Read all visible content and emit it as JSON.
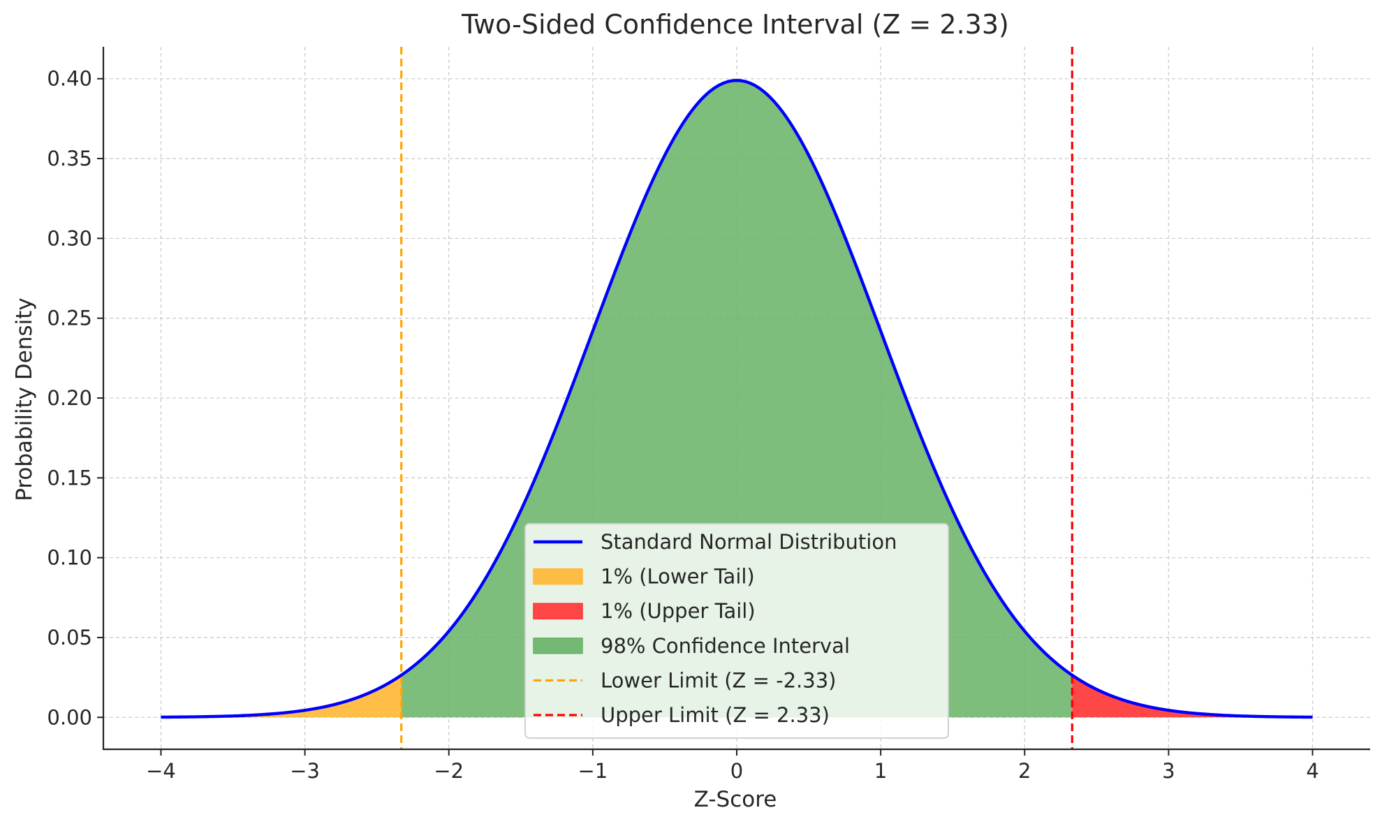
{
  "chart_data": {
    "type": "area",
    "title": "Two-Sided Confidence Interval (Z = 2.33)",
    "xlabel": "Z-Score",
    "ylabel": "Probability Density",
    "xlim": [
      -4.4,
      4.4
    ],
    "ylim": [
      -0.02,
      0.42
    ],
    "xticks": [
      -4,
      -3,
      -2,
      -1,
      0,
      1,
      2,
      3,
      4
    ],
    "xtick_labels": [
      "−4",
      "−3",
      "−2",
      "−1",
      "0",
      "1",
      "2",
      "3",
      "4"
    ],
    "yticks": [
      0.0,
      0.05,
      0.1,
      0.15,
      0.2,
      0.25,
      0.3,
      0.35,
      0.4
    ],
    "ytick_labels": [
      "0.00",
      "0.05",
      "0.10",
      "0.15",
      "0.20",
      "0.25",
      "0.30",
      "0.35",
      "0.40"
    ],
    "grid": true,
    "legend_position": "bottom-center",
    "series": [
      {
        "name": "Standard Normal Distribution",
        "kind": "line",
        "color": "#0000ff",
        "x_range": [
          -4,
          4
        ],
        "mean": 0,
        "std": 1
      },
      {
        "name": "1% (Lower Tail)",
        "kind": "fill",
        "color": "#ffb733",
        "x_range": [
          -4,
          -2.33
        ]
      },
      {
        "name": "1% (Upper Tail)",
        "kind": "fill",
        "color": "#ff3333",
        "x_range": [
          2.33,
          4
        ]
      },
      {
        "name": "98% Confidence Interval",
        "kind": "fill",
        "color": "#66b366",
        "x_range": [
          -2.33,
          2.33
        ]
      },
      {
        "name": "Lower Limit (Z = -2.33)",
        "kind": "vline",
        "color": "#ffa500",
        "x": -2.33
      },
      {
        "name": "Upper Limit (Z = 2.33)",
        "kind": "vline",
        "color": "#ff0000",
        "x": 2.33
      }
    ]
  }
}
